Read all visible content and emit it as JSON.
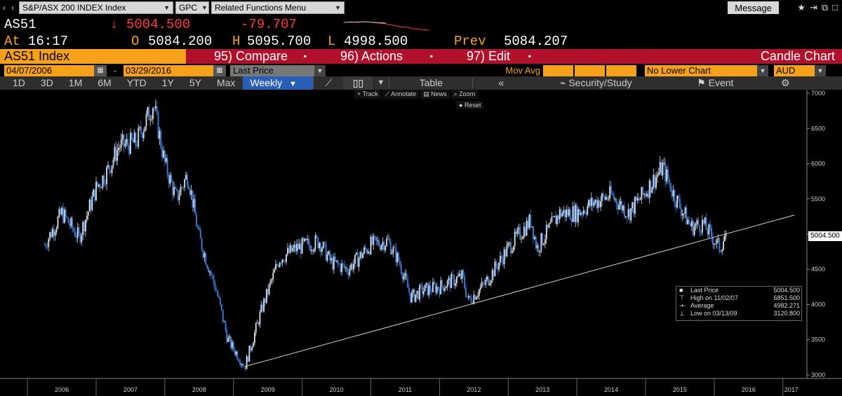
{
  "cmd": {
    "security": "S&P/ASX 200 INDEX Index",
    "function": "GPC",
    "related": "Related Functions  Menu",
    "message": "Message"
  },
  "quote": {
    "ticker": "AS51",
    "at_label": "At",
    "time": "16:17",
    "arrow": "↓",
    "last": "5004.500",
    "change": "-79.707",
    "open_label": "O",
    "open": "5084.200",
    "high_label": "H",
    "high": "5095.700",
    "low_label": "L",
    "low": "4998.500",
    "prev_label": "Prev",
    "prev": "5084.207"
  },
  "fnbar": {
    "ticker": "AS51 Index",
    "compare": "95) Compare",
    "actions": "96) Actions",
    "edit": "97) Edit",
    "title": "Candle Chart"
  },
  "dates": {
    "start": "04/07/2006",
    "end": "03/29/2016",
    "field": "Last Price",
    "mov_avg": "Mov Avg",
    "lower_chart": "No Lower Chart",
    "currency": "AUD"
  },
  "periods": [
    "1D",
    "3D",
    "1M",
    "6M",
    "YTD",
    "1Y",
    "5Y",
    "Max"
  ],
  "frequency": "Weekly",
  "table_label": "Table",
  "security_study": "Security/Study",
  "event": "Event",
  "chips": {
    "track": "Track",
    "annotate": "Annotate",
    "news": "News",
    "zoom": "Zoom",
    "reset": "Reset"
  },
  "legend": {
    "rows": [
      {
        "label": "Last Price",
        "value": "5004.500"
      },
      {
        "label": "High on 11/02/07",
        "value": "6851.500"
      },
      {
        "label": "Average",
        "value": "4982.271"
      },
      {
        "label": "Low on 03/13/09",
        "value": "3120.800"
      }
    ]
  },
  "price_tag": "5004.500",
  "colors": {
    "amber": "#f7a11a",
    "red_bar": "#b0102a",
    "up_candle": "#e0e0e0",
    "down_candle": "#3d7fe0"
  },
  "chart_data": {
    "type": "line",
    "series": [
      {
        "name": "",
        "x": [
          "2006-04",
          "2006-07",
          "2006-10",
          "2007-01",
          "2007-03",
          "2007-05",
          "2007-08",
          "2007-11",
          "2008-01",
          "2008-03",
          "2008-05",
          "2008-07",
          "2008-10",
          "2008-12",
          "2009-03",
          "2009-06",
          "2009-09",
          "2009-12",
          "2010-04",
          "2010-06",
          "2010-09",
          "2011-01",
          "2011-04",
          "2011-06",
          "2011-08",
          "2011-10",
          "2012-01",
          "2012-05",
          "2012-06",
          "2012-09",
          "2013-01",
          "2013-05",
          "2013-06",
          "2013-10",
          "2014-01",
          "2014-04",
          "2014-07",
          "2014-10",
          "2015-01",
          "2015-04",
          "2015-06",
          "2015-09",
          "2015-11",
          "2016-02",
          "2016-03"
        ],
        "values": [
          4850,
          5300,
          4950,
          5650,
          5900,
          6250,
          6300,
          6851,
          6000,
          5500,
          5850,
          4950,
          4200,
          3500,
          3120,
          3950,
          4650,
          4800,
          4900,
          4600,
          4500,
          4850,
          4900,
          4600,
          4100,
          4200,
          4250,
          4400,
          4050,
          4300,
          4800,
          5200,
          4800,
          5300,
          5300,
          5450,
          5550,
          5300,
          5600,
          5950,
          5550,
          5100,
          5150,
          4800,
          5004.5
        ]
      },
      {
        "name": "",
        "x": [
          "2009-03",
          "2017-03"
        ],
        "values": [
          3120,
          5270
        ]
      }
    ],
    "xlabel": "",
    "ylabel": "",
    "x_ticks": [
      "2006",
      "2007",
      "2008",
      "2009",
      "2010",
      "2011",
      "2012",
      "2013",
      "2014",
      "2015",
      "2016",
      "2017"
    ],
    "y_ticks": [
      3000,
      3500,
      4000,
      4500,
      5000,
      5500,
      6000,
      6500,
      7000
    ],
    "ylim": [
      2950,
      7050
    ],
    "grid": false
  }
}
